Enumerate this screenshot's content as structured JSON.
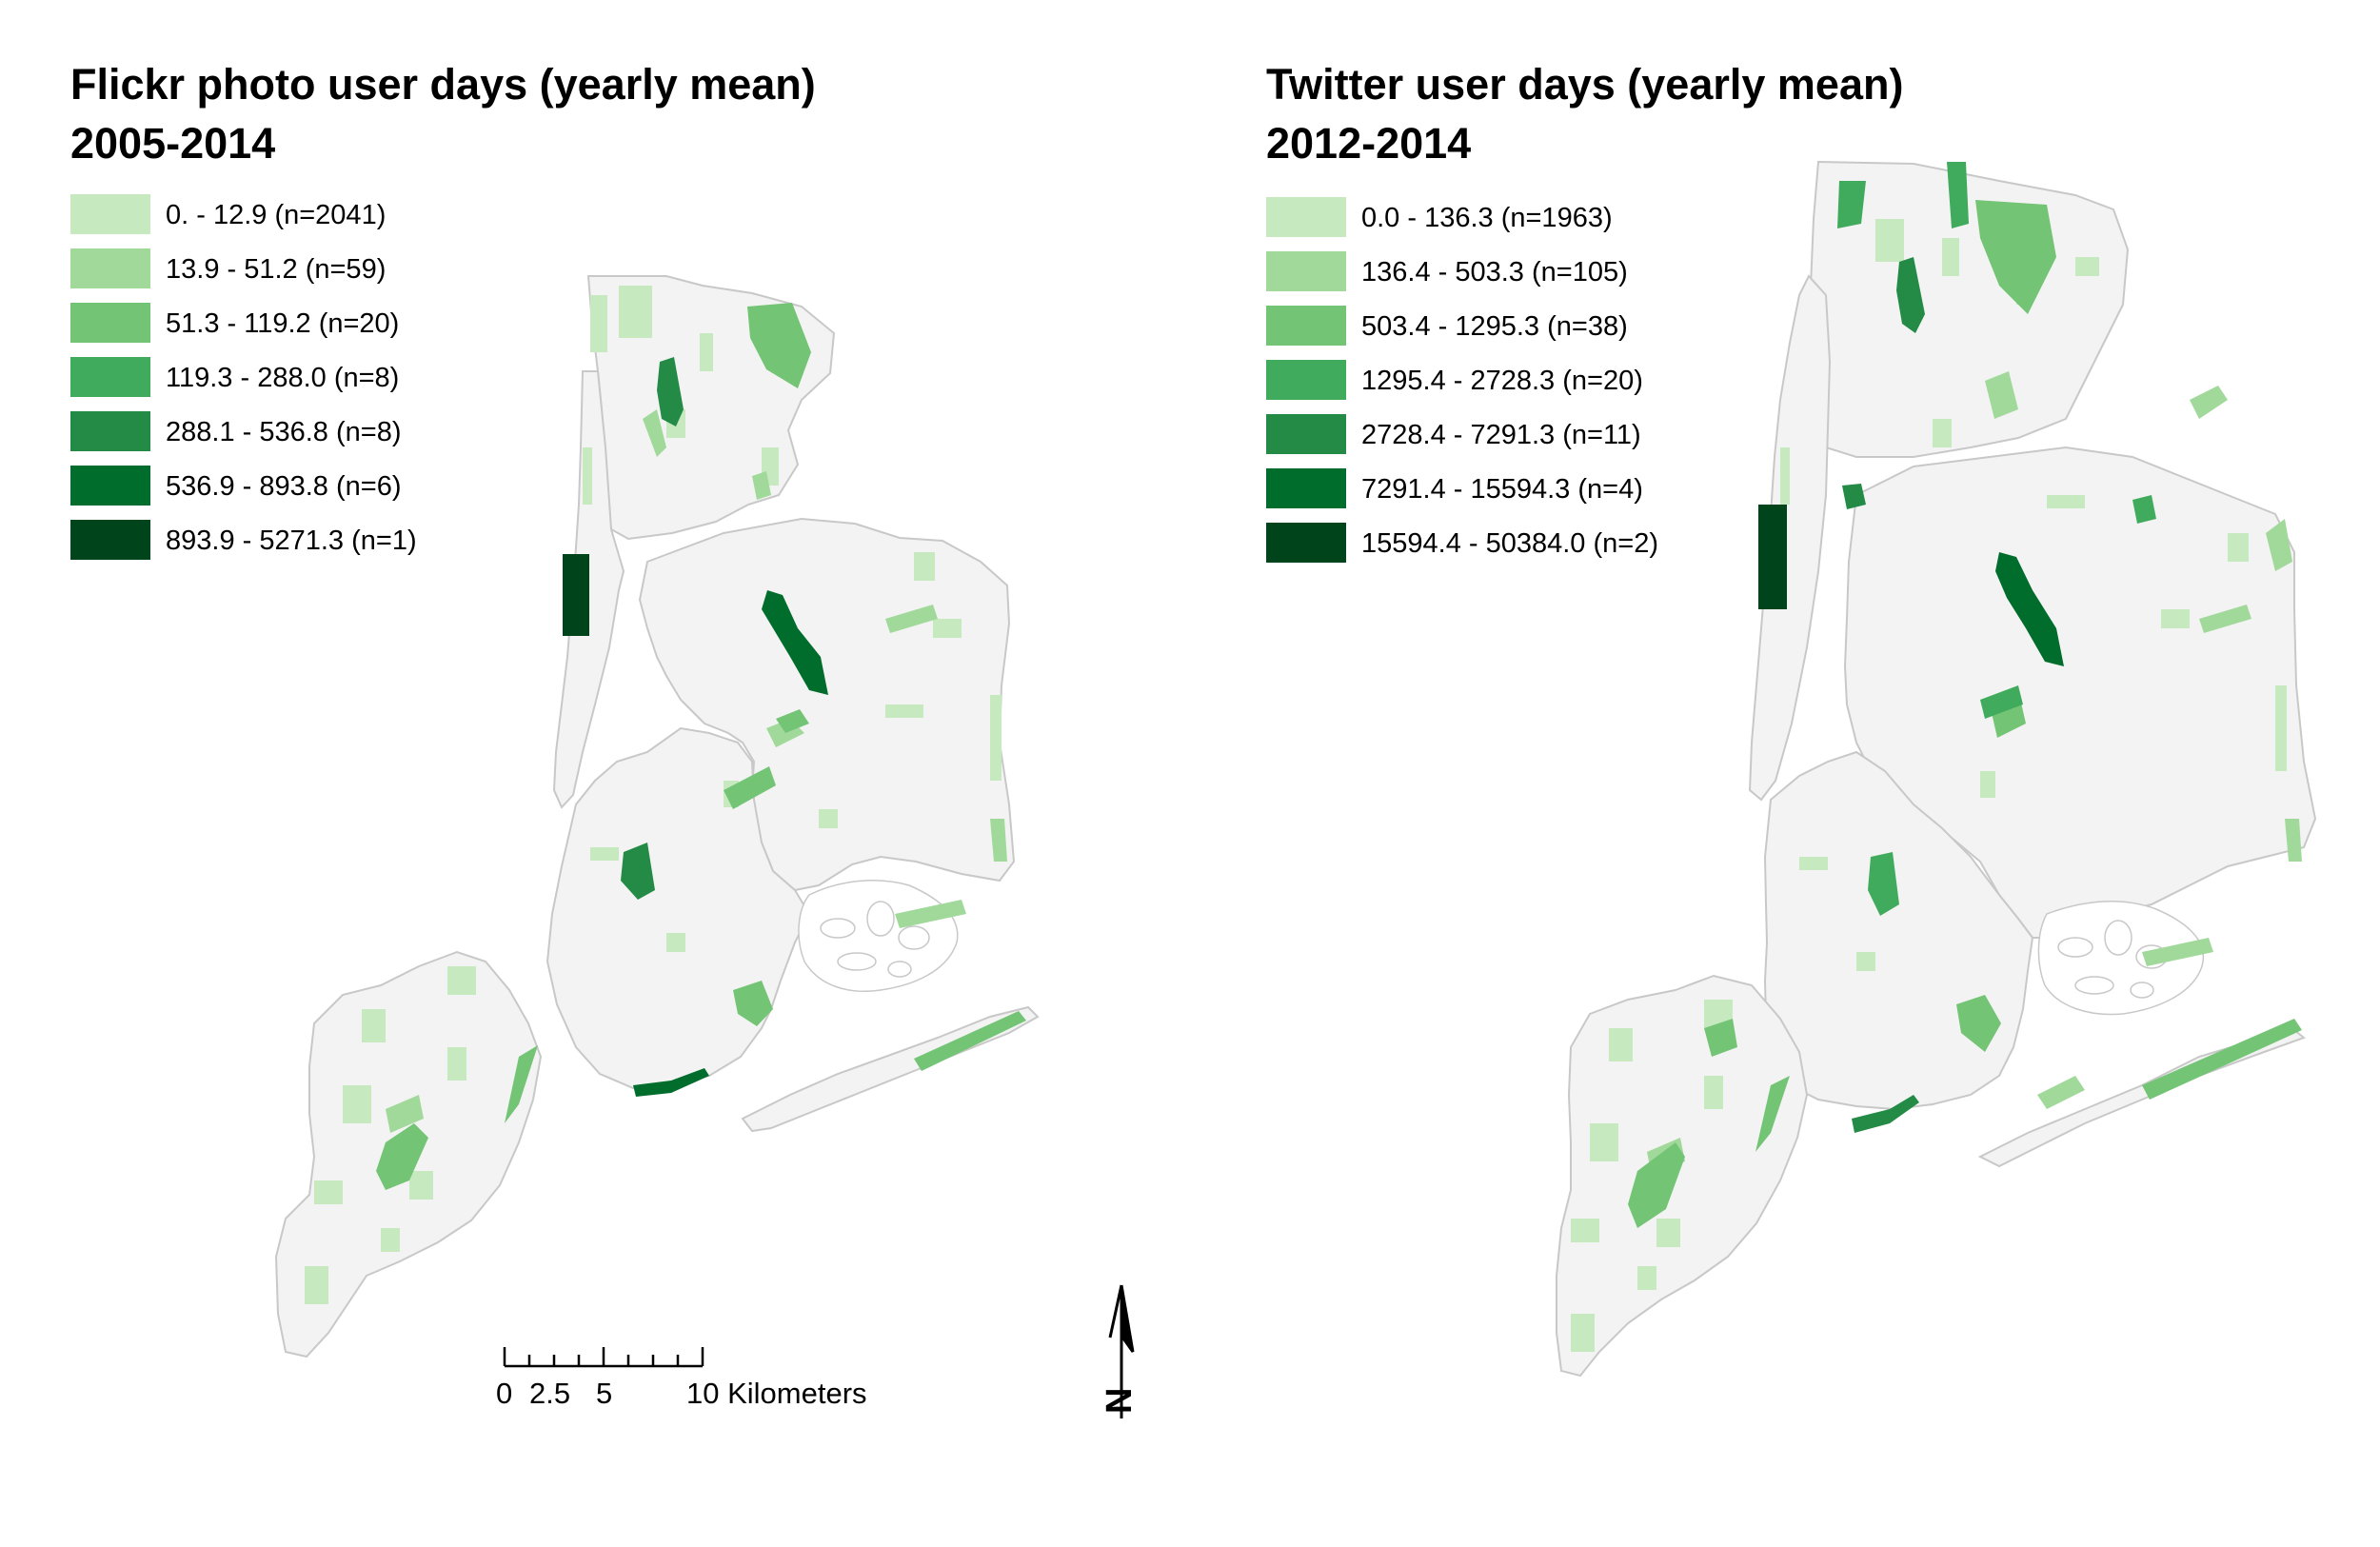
{
  "maps": {
    "flickr": {
      "title_line1": "Flickr photo user days (yearly mean)",
      "title_line2": "2005-2014",
      "legend": [
        {
          "label": "0. - 12.9 (n=2041)",
          "color": "#c7e9c0"
        },
        {
          "label": "13.9 - 51.2 (n=59)",
          "color": "#a1d99b"
        },
        {
          "label": "51.3 - 119.2 (n=20)",
          "color": "#74c476"
        },
        {
          "label": "119.3 - 288.0 (n=8)",
          "color": "#41ab5d"
        },
        {
          "label": "288.1 - 536.8 (n=8)",
          "color": "#238b45"
        },
        {
          "label": "536.9 - 893.8 (n=6)",
          "color": "#006d2c"
        },
        {
          "label": "893.9 - 5271.3 (n=1)",
          "color": "#00441b"
        }
      ]
    },
    "twitter": {
      "title_line1": "Twitter user days (yearly mean)",
      "title_line2": "2012-2014",
      "legend": [
        {
          "label": "0.0 - 136.3 (n=1963)",
          "color": "#c7e9c0"
        },
        {
          "label": "136.4 - 503.3 (n=105)",
          "color": "#a1d99b"
        },
        {
          "label": "503.4 - 1295.3 (n=38)",
          "color": "#74c476"
        },
        {
          "label": "1295.4 - 2728.3 (n=20)",
          "color": "#41ab5d"
        },
        {
          "label": "2728.4 - 7291.3 (n=11)",
          "color": "#238b45"
        },
        {
          "label": "7291.4 - 15594.3 (n=4)",
          "color": "#006d2c"
        },
        {
          "label": "15594.4 - 50384.0 (n=2)",
          "color": "#00441b"
        }
      ]
    }
  },
  "scale_bar": {
    "ticks": [
      "0",
      "2.5",
      "5",
      "10 Kilometers"
    ]
  },
  "north_arrow": {
    "label": "N",
    "icon": "north-arrow-icon"
  },
  "colors": {
    "land": "#f3f3f3",
    "boundary": "#c8c8c8",
    "water": "#ffffff"
  }
}
